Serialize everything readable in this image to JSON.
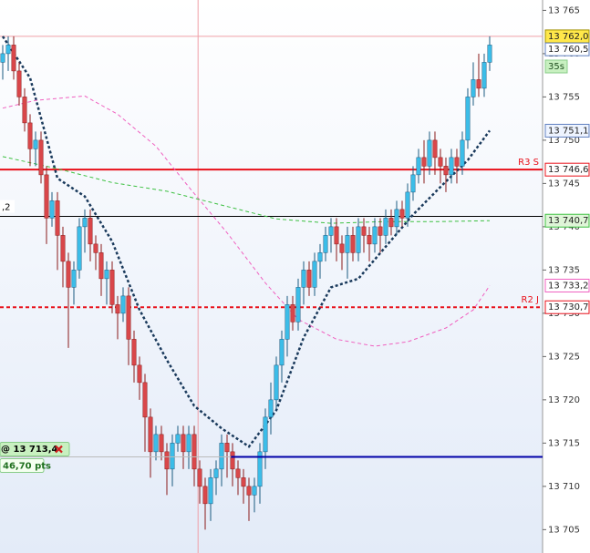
{
  "chart_data": {
    "type": "candlestick",
    "xlim": [
      -0.5,
      98.67
    ],
    "ylim": [
      13702.3,
      13766.2
    ],
    "yticks": [
      {
        "value": 13765,
        "label": "13 765"
      },
      {
        "value": 13760,
        "label": "13 760"
      },
      {
        "value": 13755,
        "label": "13 755"
      },
      {
        "value": 13750,
        "label": "13 750"
      },
      {
        "value": 13745,
        "label": "13 745"
      },
      {
        "value": 13740,
        "label": "13 740"
      },
      {
        "value": 13735,
        "label": "13 735"
      },
      {
        "value": 13730,
        "label": "13 730"
      },
      {
        "value": 13725,
        "label": "13 725"
      },
      {
        "value": 13720,
        "label": "13 720"
      },
      {
        "value": 13715,
        "label": "13 715"
      },
      {
        "value": 13710,
        "label": "13 710"
      },
      {
        "value": 13705,
        "label": "13 705"
      }
    ],
    "up_color": "#3cbde8",
    "down_color": "#d9474a",
    "open": [
      13759,
      13760,
      13761,
      13758,
      13755,
      13752,
      13749,
      13750,
      13746,
      13741,
      13743,
      13739,
      13736,
      13733,
      13735,
      13740,
      13741,
      13738,
      13737,
      13734,
      13735,
      13731,
      13730,
      13732,
      13727,
      13724,
      13722,
      13718,
      13714,
      13716,
      13714,
      13712,
      13715,
      13716,
      13714,
      13716,
      13712,
      13710,
      13708,
      13711,
      13712,
      13715,
      13714,
      13712,
      13711,
      13710,
      13709,
      13710,
      13714,
      13718,
      13720,
      13724,
      13727,
      13731,
      13729,
      13733,
      13735,
      13733,
      13736,
      13737,
      13739,
      13740,
      13738,
      13737,
      13739,
      13737,
      13740,
      13739,
      13738,
      13740,
      13739,
      13741,
      13740,
      13742,
      13741,
      13744,
      13746,
      13748,
      13747,
      13750,
      13748,
      13747,
      13746,
      13748,
      13747,
      13750,
      13755,
      13757,
      13756,
      13759
    ],
    "high": [
      13761,
      13762,
      13762,
      13759,
      13756,
      13753,
      13751,
      13751,
      13747,
      13744,
      13744,
      13740,
      13737,
      13736,
      13741,
      13742,
      13742,
      13739,
      13738,
      13736,
      13736,
      13732,
      13733,
      13733,
      13728,
      13725,
      13723,
      13719,
      13717,
      13717,
      13715,
      13716,
      13717,
      13717,
      13717,
      13717,
      13713,
      13711,
      13712,
      13713,
      13716,
      13716,
      13715,
      13713,
      13712,
      13711,
      13711,
      13715,
      13719,
      13722,
      13725,
      13728,
      13732,
      13732,
      13734,
      13736,
      13736,
      13737,
      13738,
      13740,
      13741,
      13741,
      13739,
      13740,
      13740,
      13741,
      13741,
      13740,
      13741,
      13741,
      13742,
      13742,
      13743,
      13743,
      13745,
      13747,
      13749,
      13750,
      13751,
      13751,
      13749,
      13748,
      13749,
      13749,
      13751,
      13756,
      13759,
      13760,
      13760,
      13762
    ],
    "low": [
      13757,
      13758,
      13757,
      13754,
      13751,
      13747,
      13747,
      13745,
      13738,
      13740,
      13735,
      13733,
      13726,
      13731,
      13734,
      13737,
      13736,
      13735,
      13732,
      13731,
      13730,
      13727,
      13729,
      13724,
      13722,
      13720,
      13714,
      13711,
      13713,
      13713,
      13709,
      13710,
      13714,
      13712,
      13712,
      13710,
      13708,
      13705,
      13706,
      13709,
      13710,
      13711,
      13710,
      13709,
      13708,
      13706,
      13707,
      13708,
      13712,
      13716,
      13719,
      13722,
      13725,
      13728,
      13728,
      13731,
      13732,
      13732,
      13734,
      13736,
      13737,
      13736,
      13735,
      13734,
      13736,
      13736,
      13737,
      13736,
      13737,
      13737,
      13738,
      13739,
      13739,
      13740,
      13740,
      13743,
      13745,
      13745,
      13746,
      13746,
      13745,
      13744,
      13745,
      13745,
      13746,
      13749,
      13754,
      13755,
      13755,
      13758
    ],
    "close": [
      13760,
      13761,
      13758,
      13755,
      13752,
      13749,
      13750,
      13746,
      13741,
      13743,
      13739,
      13736,
      13733,
      13735,
      13740,
      13741,
      13738,
      13737,
      13734,
      13735,
      13731,
      13730,
      13732,
      13727,
      13724,
      13722,
      13718,
      13714,
      13716,
      13714,
      13712,
      13715,
      13716,
      13714,
      13716,
      13712,
      13710,
      13708,
      13711,
      13712,
      13715,
      13714,
      13712,
      13711,
      13710,
      13709,
      13710,
      13714,
      13718,
      13720,
      13724,
      13727,
      13731,
      13729,
      13733,
      13735,
      13733,
      13736,
      13737,
      13739,
      13740,
      13738,
      13737,
      13739,
      13737,
      13740,
      13739,
      13738,
      13740,
      13739,
      13741,
      13740,
      13742,
      13741,
      13744,
      13746,
      13748,
      13747,
      13750,
      13748,
      13747,
      13746,
      13748,
      13747,
      13750,
      13755,
      13757,
      13756,
      13759,
      13761
    ],
    "overlays": [
      {
        "color": "#1a3a5c",
        "line_style": "dotted",
        "x": [
          0,
          5,
          10,
          15,
          20,
          25,
          30,
          35,
          40,
          45,
          50,
          55,
          60,
          65,
          70,
          75,
          80,
          85,
          89
        ],
        "values": [
          13762,
          13757.2,
          13745.6,
          13743.5,
          13738.3,
          13730.4,
          13724.6,
          13719.3,
          13716.7,
          13714.6,
          13718.8,
          13727.2,
          13733,
          13734,
          13737.7,
          13741.4,
          13744.6,
          13747.7,
          13751.1
        ]
      },
      {
        "color": "#f060c0",
        "line_style": "dashed",
        "x": [
          0,
          6,
          15,
          21,
          28,
          34,
          41,
          48,
          54,
          61,
          68,
          74,
          81,
          86,
          89
        ],
        "values": [
          13753.7,
          13754.6,
          13755.1,
          13753.0,
          13749.3,
          13744.6,
          13739.3,
          13733.5,
          13729.3,
          13727.0,
          13726.2,
          13726.7,
          13728.3,
          13730.4,
          13733.2
        ]
      },
      {
        "color": "#3cc040",
        "line_style": "dashed",
        "x": [
          0,
          10,
          20,
          30,
          40,
          50,
          60,
          70,
          80,
          89
        ],
        "values": [
          13748.1,
          13746.7,
          13745.1,
          13744.1,
          13742.5,
          13740.9,
          13740.4,
          13740.6,
          13740.6,
          13740.7
        ]
      }
    ],
    "levels": [
      {
        "value": 13746.6,
        "label": "R3 S",
        "color": "#e8101a",
        "line_style": "solid",
        "label_side": "right"
      },
      {
        "value": 13730.7,
        "label": "R2 J",
        "color": "#e8101a",
        "line_style": "dashed",
        "label_side": "right"
      },
      {
        "value": 13741.2,
        "label": ",2",
        "color": "#000000",
        "line_style": "thin",
        "label_side": "left"
      }
    ],
    "crosshair": {
      "x": 35.7,
      "y": 13762.0,
      "color": "#f0a0a8"
    },
    "order": {
      "value": 13713.4,
      "start": 41.7,
      "color": "#0000a8",
      "price_label": "@ 13 713,4",
      "pts": "46,70 pts"
    },
    "tags": [
      {
        "value": 13762.0,
        "label": "13 762,0",
        "bg": "#ffe84a",
        "border": "#a09000"
      },
      {
        "value": 13760.5,
        "label": "13 760,5",
        "bg": "#ffffff",
        "border": "#6080c0"
      },
      {
        "value": 13751.1,
        "label": "13 751,1",
        "bg": "#eef4ff",
        "border": "#6080c0"
      },
      {
        "value": 13746.6,
        "label": "13 746,6",
        "bg": "#ffffff",
        "border": "#e8101a"
      },
      {
        "value": 13740.7,
        "label": "13 740,7",
        "bg": "#dff5d8",
        "border": "#3cc040"
      },
      {
        "value": 13733.2,
        "label": "13 733,2",
        "bg": "#ffffff",
        "border": "#f060c0"
      },
      {
        "value": 13730.7,
        "label": "13 730,7",
        "bg": "#ffffff",
        "border": "#e8101a"
      }
    ],
    "timer": "35s"
  }
}
